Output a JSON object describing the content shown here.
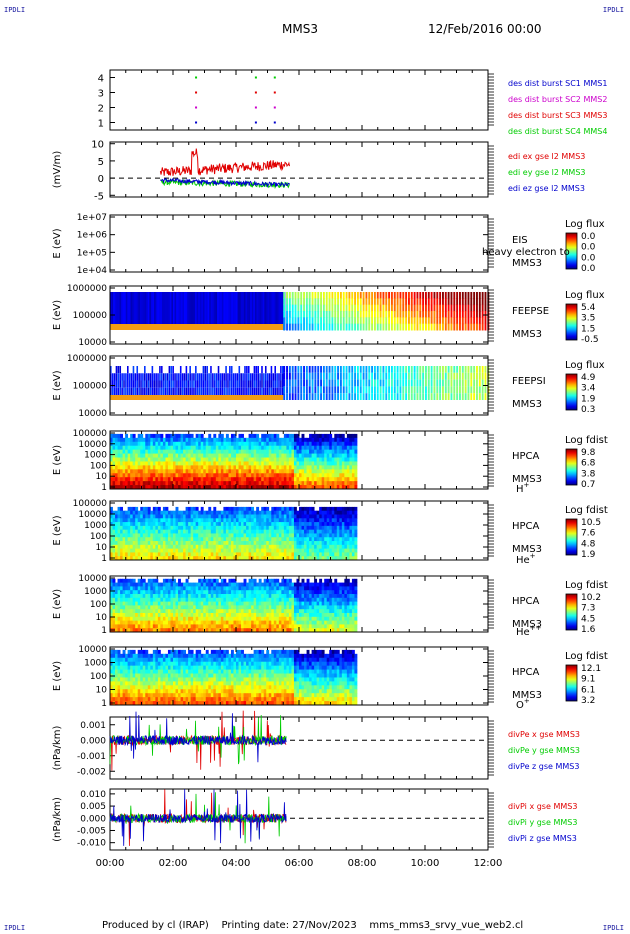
{
  "page": {
    "corner_tl": "IPDLI",
    "corner_tr": "IPDLI",
    "corner_bl": "IPDLI",
    "corner_br": "IPDLI",
    "spacecraft": "MMS3",
    "date": "12/Feb/2016 00:00",
    "footer_producer": "Produced by cl (IRAP)",
    "footer_date": "Printing date: 27/Nov/2023",
    "footer_file": "mms_mms3_srvy_vue_web2.cl"
  },
  "colors": {
    "mms1": "#0000cc",
    "mms2": "#cc00cc",
    "mms3": "#e00000",
    "mms4": "#00cc00",
    "ex": "#e00000",
    "ey": "#00cc00",
    "ez": "#0000cc"
  },
  "chart_data": [
    {
      "type": "scatter",
      "id": "burst",
      "yticks": [
        "1",
        "2",
        "3",
        "4"
      ],
      "ylim": [
        0.5,
        4.5
      ],
      "legend": [
        "des dist burst SC1 MMS1",
        "des dist burst SC2 MMS2",
        "des dist burst SC3 MMS3",
        "des dist burst SC4 MMS4"
      ],
      "series": [
        {
          "name": "des dist burst SC1 MMS1",
          "level": 1,
          "x": [
            2.7,
            4.6,
            5.2
          ]
        },
        {
          "name": "des dist burst SC2 MMS2",
          "level": 2,
          "x": [
            2.7,
            4.6,
            5.2
          ]
        },
        {
          "name": "des dist burst SC3 MMS3",
          "level": 3,
          "x": [
            2.7,
            4.6,
            5.2
          ]
        },
        {
          "name": "des dist burst SC4 MMS4",
          "level": 4,
          "x": [
            2.7,
            4.6,
            5.2
          ]
        }
      ]
    },
    {
      "type": "line",
      "id": "edi",
      "ylabel": "(mV/m)",
      "yticks": [
        "10",
        "5",
        "0",
        "-5"
      ],
      "ylim": [
        -5.5,
        10.5
      ],
      "legend": [
        "edi ex gse l2 MMS3",
        "edi ey gse l2 MMS3",
        "edi ez gse l2 MMS3"
      ],
      "xrange": [
        1.6,
        5.7
      ]
    },
    {
      "type": "heatmap",
      "id": "eis",
      "ylabel": "E (eV)",
      "yticks": [
        "1e+07",
        "1e+06",
        "1e+05",
        "1e+04"
      ],
      "instrument": "EIS",
      "overlay": "heavy electron to",
      "sc": "MMS3",
      "cbar_title": "Log flux",
      "cbar_ticks": [
        "0.0",
        "0.0",
        "0.0",
        "0.0"
      ]
    },
    {
      "type": "heatmap",
      "id": "feepse",
      "ylabel": "E (eV)",
      "yticks": [
        "1000000",
        "100000",
        "10000"
      ],
      "instrument": "FEEPSE",
      "sc": "MMS3",
      "cbar_title": "Log flux",
      "cbar_ticks": [
        "5.4",
        "3.5",
        "1.5",
        "-0.5"
      ]
    },
    {
      "type": "heatmap",
      "id": "feepsi",
      "ylabel": "E (eV)",
      "yticks": [
        "1000000",
        "100000",
        "10000"
      ],
      "instrument": "FEEPSI",
      "sc": "MMS3",
      "cbar_title": "Log flux",
      "cbar_ticks": [
        "4.9",
        "3.4",
        "1.9",
        "0.3"
      ]
    },
    {
      "type": "heatmap",
      "id": "hpca_h",
      "ylabel": "E (eV)",
      "yticks": [
        "100000",
        "10000",
        "1000",
        "100",
        "10",
        "1"
      ],
      "instrument": "HPCA",
      "sc": "MMS3",
      "species": "H",
      "species_sup": "+",
      "cbar_title": "Log fdist",
      "cbar_ticks": [
        "9.8",
        "6.8",
        "3.8",
        "0.7"
      ]
    },
    {
      "type": "heatmap",
      "id": "hpca_he",
      "ylabel": "E (eV)",
      "yticks": [
        "100000",
        "10000",
        "1000",
        "100",
        "10",
        "1"
      ],
      "instrument": "HPCA",
      "sc": "MMS3",
      "species": "He",
      "species_sup": "+",
      "cbar_title": "Log fdist",
      "cbar_ticks": [
        "10.5",
        "7.6",
        "4.8",
        "1.9"
      ]
    },
    {
      "type": "heatmap",
      "id": "hpca_he2",
      "ylabel": "E (eV)",
      "yticks": [
        "10000",
        "1000",
        "100",
        "10",
        "1"
      ],
      "instrument": "HPCA",
      "sc": "MMS3",
      "species": "He",
      "species_sup": "++",
      "cbar_title": "Log fdist",
      "cbar_ticks": [
        "10.2",
        "7.3",
        "4.5",
        "1.6"
      ]
    },
    {
      "type": "heatmap",
      "id": "hpca_o",
      "ylabel": "E (eV)",
      "yticks": [
        "10000",
        "1000",
        "100",
        "10",
        "1"
      ],
      "instrument": "HPCA",
      "sc": "MMS3",
      "species": "O",
      "species_sup": "+",
      "cbar_title": "Log fdist",
      "cbar_ticks": [
        "12.1",
        "9.1",
        "6.1",
        "3.2"
      ]
    },
    {
      "type": "line",
      "id": "divpe",
      "ylabel": "(nPa/km)",
      "yticks": [
        "0.001",
        "0.000",
        "-0.001",
        "-0.002"
      ],
      "ylim": [
        -0.0025,
        0.0015
      ],
      "legend": [
        "divPe x gse MMS3",
        "divPe y gse MMS3",
        "divPe z gse MMS3"
      ]
    },
    {
      "type": "line",
      "id": "divpi",
      "ylabel": "(nPa/km)",
      "yticks": [
        "0.010",
        "0.005",
        "0.000",
        "-0.005",
        "-0.010"
      ],
      "ylim": [
        -0.013,
        0.012
      ],
      "legend": [
        "divPi x gse MMS3",
        "divPi y gse MMS3",
        "divPi z gse MMS3"
      ]
    }
  ],
  "xaxis": {
    "ticks": [
      "00:00",
      "02:00",
      "04:00",
      "06:00",
      "08:00",
      "10:00",
      "12:00"
    ],
    "range_hours": [
      0,
      12
    ]
  }
}
